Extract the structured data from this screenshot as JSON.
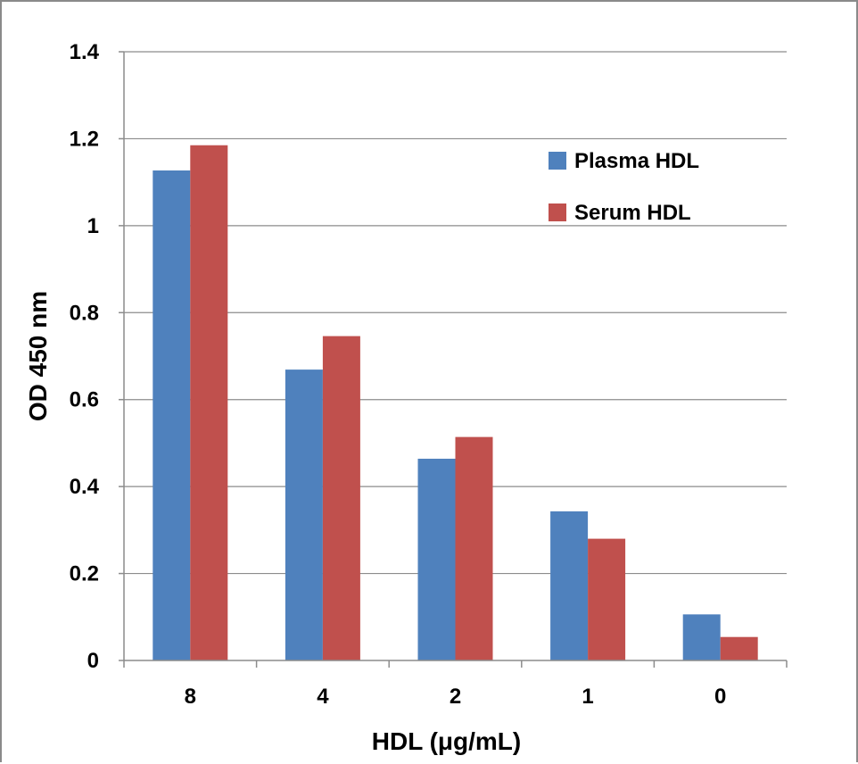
{
  "chart_data": {
    "type": "bar",
    "title": "",
    "xlabel": "HDL (μg/mL)",
    "ylabel": "OD 450 nm",
    "categories": [
      "8",
      "4",
      "2",
      "1",
      "0"
    ],
    "series": [
      {
        "name": "Plasma HDL",
        "color": "#4f81bd",
        "values": [
          1.127,
          0.669,
          0.464,
          0.343,
          0.106
        ]
      },
      {
        "name": "Serum HDL",
        "color": "#c0504d",
        "values": [
          1.185,
          0.746,
          0.514,
          0.28,
          0.054
        ]
      }
    ],
    "ylim": [
      0,
      1.4
    ],
    "yticks": [
      "0",
      "0.2",
      "0.4",
      "0.6",
      "0.8",
      "1",
      "1.2",
      "1.4"
    ],
    "grid": true,
    "legend_position": "top-right"
  }
}
